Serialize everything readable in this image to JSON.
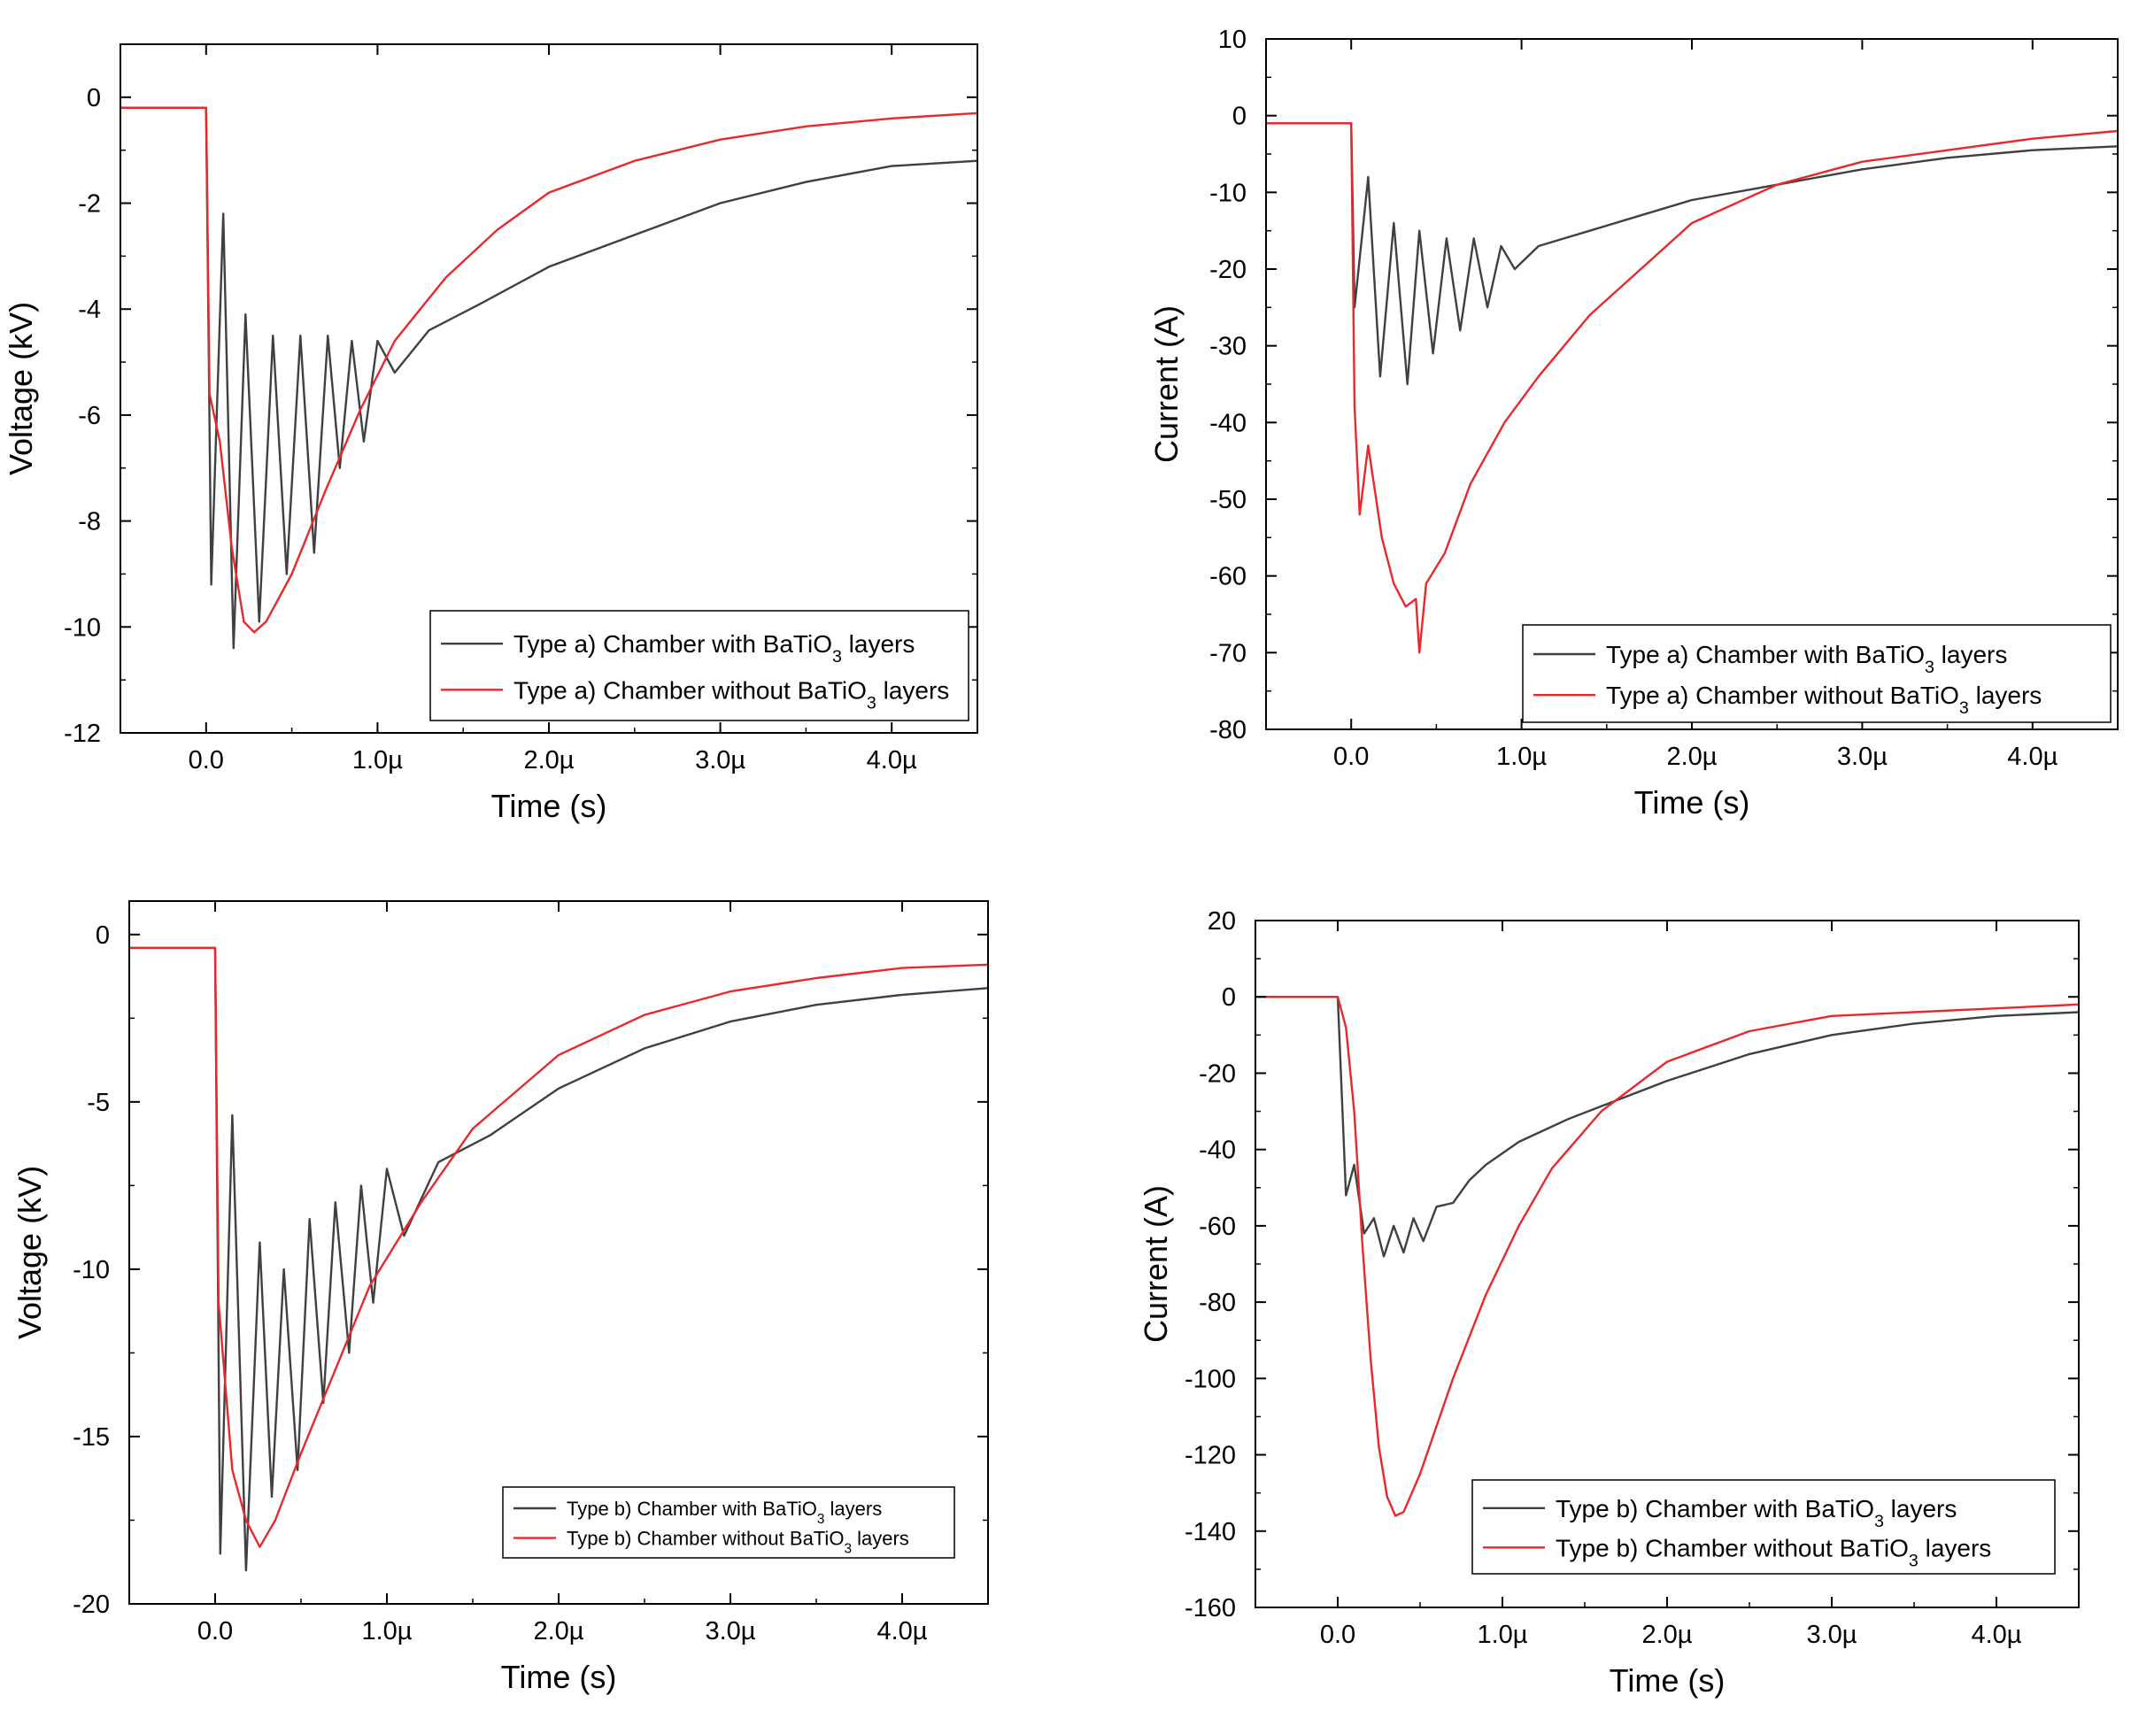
{
  "chart_data": [
    {
      "id": "a_voltage",
      "type": "line",
      "title": "",
      "xlabel": "Time (s)",
      "ylabel": "Voltage (kV)",
      "xlim": [
        -5e-07,
        4.5e-06
      ],
      "ylim": [
        -12,
        1
      ],
      "x_ticks": [
        0,
        1e-06,
        2e-06,
        3e-06,
        4e-06
      ],
      "x_tick_labels": [
        "0.0",
        "1.0µ",
        "2.0µ",
        "3.0µ",
        "4.0µ"
      ],
      "y_ticks": [
        0,
        -2,
        -4,
        -6,
        -8,
        -10,
        -12
      ],
      "y_tick_labels": [
        "0",
        "-2",
        "-4",
        "-6",
        "-8",
        "-10",
        "-12"
      ],
      "grid": false,
      "legend_position": "bottom-right",
      "series": [
        {
          "name": "Type a) Chamber with BaTiO3 layers",
          "color": "#404040",
          "points": [
            [
              -5e-07,
              -0.2
            ],
            [
              0,
              -0.2
            ],
            [
              3e-08,
              -9.2
            ],
            [
              1e-07,
              -2.2
            ],
            [
              1.6e-07,
              -10.4
            ],
            [
              2.3e-07,
              -4.1
            ],
            [
              3.1e-07,
              -9.9
            ],
            [
              3.9e-07,
              -4.5
            ],
            [
              4.7e-07,
              -9.0
            ],
            [
              5.5e-07,
              -4.5
            ],
            [
              6.3e-07,
              -8.6
            ],
            [
              7.1e-07,
              -4.5
            ],
            [
              7.8e-07,
              -7.0
            ],
            [
              8.5e-07,
              -4.6
            ],
            [
              9.2e-07,
              -6.5
            ],
            [
              1e-06,
              -4.6
            ],
            [
              1.1e-06,
              -5.2
            ],
            [
              1.3e-06,
              -4.4
            ],
            [
              1.6e-06,
              -3.9
            ],
            [
              2e-06,
              -3.2
            ],
            [
              2.5e-06,
              -2.6
            ],
            [
              3e-06,
              -2.0
            ],
            [
              3.5e-06,
              -1.6
            ],
            [
              4e-06,
              -1.3
            ],
            [
              4.5e-06,
              -1.2
            ]
          ]
        },
        {
          "name": "Type a) Chamber without BaTiO3 layers",
          "color": "#e8282b",
          "points": [
            [
              -5e-07,
              -0.2
            ],
            [
              0,
              -0.2
            ],
            [
              2e-08,
              -5.6
            ],
            [
              8e-08,
              -6.5
            ],
            [
              1.5e-07,
              -8.5
            ],
            [
              2.2e-07,
              -9.9
            ],
            [
              2.8e-07,
              -10.1
            ],
            [
              3.5e-07,
              -9.9
            ],
            [
              5e-07,
              -9.0
            ],
            [
              7e-07,
              -7.4
            ],
            [
              9e-07,
              -5.9
            ],
            [
              1.1e-06,
              -4.6
            ],
            [
              1.4e-06,
              -3.4
            ],
            [
              1.7e-06,
              -2.5
            ],
            [
              2e-06,
              -1.8
            ],
            [
              2.5e-06,
              -1.2
            ],
            [
              3e-06,
              -0.8
            ],
            [
              3.5e-06,
              -0.55
            ],
            [
              4e-06,
              -0.4
            ],
            [
              4.5e-06,
              -0.3
            ]
          ]
        }
      ]
    },
    {
      "id": "a_current",
      "type": "line",
      "title": "",
      "xlabel": "Time (s)",
      "ylabel": "Current (A)",
      "xlim": [
        -5e-07,
        4.5e-06
      ],
      "ylim": [
        -80,
        10
      ],
      "x_ticks": [
        0,
        1e-06,
        2e-06,
        3e-06,
        4e-06
      ],
      "x_tick_labels": [
        "0.0",
        "1.0µ",
        "2.0µ",
        "3.0µ",
        "4.0µ"
      ],
      "y_ticks": [
        10,
        0,
        -10,
        -20,
        -30,
        -40,
        -50,
        -60,
        -70,
        -80
      ],
      "y_tick_labels": [
        "10",
        "0",
        "-10",
        "-20",
        "-30",
        "-40",
        "-50",
        "-60",
        "-70",
        "-80"
      ],
      "grid": false,
      "legend_position": "bottom-right",
      "series": [
        {
          "name": "Type a) Chamber with BaTiO3 layers",
          "color": "#404040",
          "points": [
            [
              -5e-07,
              -1
            ],
            [
              0,
              -1
            ],
            [
              2e-08,
              -25
            ],
            [
              1e-07,
              -8
            ],
            [
              1.7e-07,
              -34
            ],
            [
              2.5e-07,
              -14
            ],
            [
              3.3e-07,
              -35
            ],
            [
              4e-07,
              -15
            ],
            [
              4.8e-07,
              -31
            ],
            [
              5.6e-07,
              -16
            ],
            [
              6.4e-07,
              -28
            ],
            [
              7.2e-07,
              -16
            ],
            [
              8e-07,
              -25
            ],
            [
              8.8e-07,
              -17
            ],
            [
              9.6e-07,
              -20
            ],
            [
              1.1e-06,
              -17
            ],
            [
              1.4e-06,
              -15
            ],
            [
              1.7e-06,
              -13
            ],
            [
              2e-06,
              -11
            ],
            [
              2.5e-06,
              -9
            ],
            [
              3e-06,
              -7
            ],
            [
              3.5e-06,
              -5.5
            ],
            [
              4e-06,
              -4.5
            ],
            [
              4.5e-06,
              -4
            ]
          ]
        },
        {
          "name": "Type a) Chamber without BaTiO3 layers",
          "color": "#e8282b",
          "points": [
            [
              -5e-07,
              -1
            ],
            [
              0,
              -1
            ],
            [
              2e-08,
              -38
            ],
            [
              5e-08,
              -52
            ],
            [
              1e-07,
              -43
            ],
            [
              1.8e-07,
              -55
            ],
            [
              2.5e-07,
              -61
            ],
            [
              3.2e-07,
              -64
            ],
            [
              3.8e-07,
              -63
            ],
            [
              4e-07,
              -70
            ],
            [
              4.4e-07,
              -61
            ],
            [
              5.5e-07,
              -57
            ],
            [
              7e-07,
              -48
            ],
            [
              9e-07,
              -40
            ],
            [
              1.1e-06,
              -34
            ],
            [
              1.4e-06,
              -26
            ],
            [
              1.7e-06,
              -20
            ],
            [
              2e-06,
              -14
            ],
            [
              2.5e-06,
              -9
            ],
            [
              3e-06,
              -6
            ],
            [
              3.5e-06,
              -4.5
            ],
            [
              4e-06,
              -3
            ],
            [
              4.5e-06,
              -2
            ]
          ]
        }
      ]
    },
    {
      "id": "b_voltage",
      "type": "line",
      "title": "",
      "xlabel": "Time (s)",
      "ylabel": "Voltage (kV)",
      "xlim": [
        -5e-07,
        4.5e-06
      ],
      "ylim": [
        -20,
        1
      ],
      "x_ticks": [
        0,
        1e-06,
        2e-06,
        3e-06,
        4e-06
      ],
      "x_tick_labels": [
        "0.0",
        "1.0µ",
        "2.0µ",
        "3.0µ",
        "4.0µ"
      ],
      "y_ticks": [
        0,
        -5,
        -10,
        -15,
        -20
      ],
      "y_tick_labels": [
        "0",
        "-5",
        "-10",
        "-15",
        "-20"
      ],
      "grid": false,
      "legend_position": "bottom-right",
      "series": [
        {
          "name": "Type b) Chamber with BaTiO3 layers",
          "color": "#404040",
          "points": [
            [
              -5e-07,
              -0.4
            ],
            [
              0,
              -0.4
            ],
            [
              3e-08,
              -18.5
            ],
            [
              1e-07,
              -5.4
            ],
            [
              1.8e-07,
              -19
            ],
            [
              2.6e-07,
              -9.2
            ],
            [
              3.3e-07,
              -16.8
            ],
            [
              4e-07,
              -10
            ],
            [
              4.8e-07,
              -16
            ],
            [
              5.5e-07,
              -8.5
            ],
            [
              6.3e-07,
              -14
            ],
            [
              7e-07,
              -8
            ],
            [
              7.8e-07,
              -12.5
            ],
            [
              8.5e-07,
              -7.5
            ],
            [
              9.2e-07,
              -11
            ],
            [
              1e-06,
              -7
            ],
            [
              1.1e-06,
              -9
            ],
            [
              1.3e-06,
              -6.8
            ],
            [
              1.6e-06,
              -6
            ],
            [
              2e-06,
              -4.6
            ],
            [
              2.5e-06,
              -3.4
            ],
            [
              3e-06,
              -2.6
            ],
            [
              3.5e-06,
              -2.1
            ],
            [
              4e-06,
              -1.8
            ],
            [
              4.5e-06,
              -1.6
            ]
          ]
        },
        {
          "name": "Type b) Chamber without BaTiO3 layers",
          "color": "#e8282b",
          "points": [
            [
              -5e-07,
              -0.4
            ],
            [
              0,
              -0.4
            ],
            [
              2e-08,
              -11
            ],
            [
              1e-07,
              -16
            ],
            [
              1.8e-07,
              -17.5
            ],
            [
              2.6e-07,
              -18.3
            ],
            [
              3.5e-07,
              -17.5
            ],
            [
              5e-07,
              -15.5
            ],
            [
              7e-07,
              -13
            ],
            [
              9e-07,
              -10.5
            ],
            [
              1.2e-06,
              -8
            ],
            [
              1.5e-06,
              -5.8
            ],
            [
              2e-06,
              -3.6
            ],
            [
              2.5e-06,
              -2.4
            ],
            [
              3e-06,
              -1.7
            ],
            [
              3.5e-06,
              -1.3
            ],
            [
              4e-06,
              -1.0
            ],
            [
              4.5e-06,
              -0.9
            ]
          ]
        }
      ]
    },
    {
      "id": "b_current",
      "type": "line",
      "title": "",
      "xlabel": "Time (s)",
      "ylabel": "Current (A)",
      "xlim": [
        -5e-07,
        4.5e-06
      ],
      "ylim": [
        -160,
        20
      ],
      "x_ticks": [
        0,
        1e-06,
        2e-06,
        3e-06,
        4e-06
      ],
      "x_tick_labels": [
        "0.0",
        "1.0µ",
        "2.0µ",
        "3.0µ",
        "4.0µ"
      ],
      "y_ticks": [
        20,
        0,
        -20,
        -40,
        -60,
        -80,
        -100,
        -120,
        -140,
        -160
      ],
      "y_tick_labels": [
        "20",
        "0",
        "-20",
        "-40",
        "-60",
        "-80",
        "-100",
        "-120",
        "-140",
        "-160"
      ],
      "grid": false,
      "legend_position": "bottom-right",
      "series": [
        {
          "name": "Type b) Chamber with BaTiO3 layers",
          "color": "#404040",
          "points": [
            [
              -5e-07,
              0
            ],
            [
              0,
              0
            ],
            [
              5e-08,
              -52
            ],
            [
              1e-07,
              -44
            ],
            [
              1.6e-07,
              -62
            ],
            [
              2.2e-07,
              -58
            ],
            [
              2.8e-07,
              -68
            ],
            [
              3.4e-07,
              -60
            ],
            [
              4e-07,
              -67
            ],
            [
              4.6e-07,
              -58
            ],
            [
              5.2e-07,
              -64
            ],
            [
              6e-07,
              -55
            ],
            [
              7e-07,
              -54
            ],
            [
              8e-07,
              -48
            ],
            [
              9e-07,
              -44
            ],
            [
              1.1e-06,
              -38
            ],
            [
              1.4e-06,
              -32
            ],
            [
              1.7e-06,
              -27
            ],
            [
              2e-06,
              -22
            ],
            [
              2.5e-06,
              -15
            ],
            [
              3e-06,
              -10
            ],
            [
              3.5e-06,
              -7
            ],
            [
              4e-06,
              -5
            ],
            [
              4.5e-06,
              -4
            ]
          ]
        },
        {
          "name": "Type b) Chamber without BaTiO3 layers",
          "color": "#e8282b",
          "points": [
            [
              -5e-07,
              0
            ],
            [
              0,
              0
            ],
            [
              5e-08,
              -8
            ],
            [
              1e-07,
              -30
            ],
            [
              1.5e-07,
              -65
            ],
            [
              2e-07,
              -95
            ],
            [
              2.5e-07,
              -118
            ],
            [
              3e-07,
              -131
            ],
            [
              3.5e-07,
              -136
            ],
            [
              4e-07,
              -135
            ],
            [
              5e-07,
              -125
            ],
            [
              7e-07,
              -100
            ],
            [
              9e-07,
              -78
            ],
            [
              1.1e-06,
              -60
            ],
            [
              1.3e-06,
              -45
            ],
            [
              1.6e-06,
              -30
            ],
            [
              2e-06,
              -17
            ],
            [
              2.5e-06,
              -9
            ],
            [
              3e-06,
              -5
            ],
            [
              3.5e-06,
              -4
            ],
            [
              4e-06,
              -3
            ],
            [
              4.5e-06,
              -2
            ]
          ]
        }
      ]
    }
  ]
}
